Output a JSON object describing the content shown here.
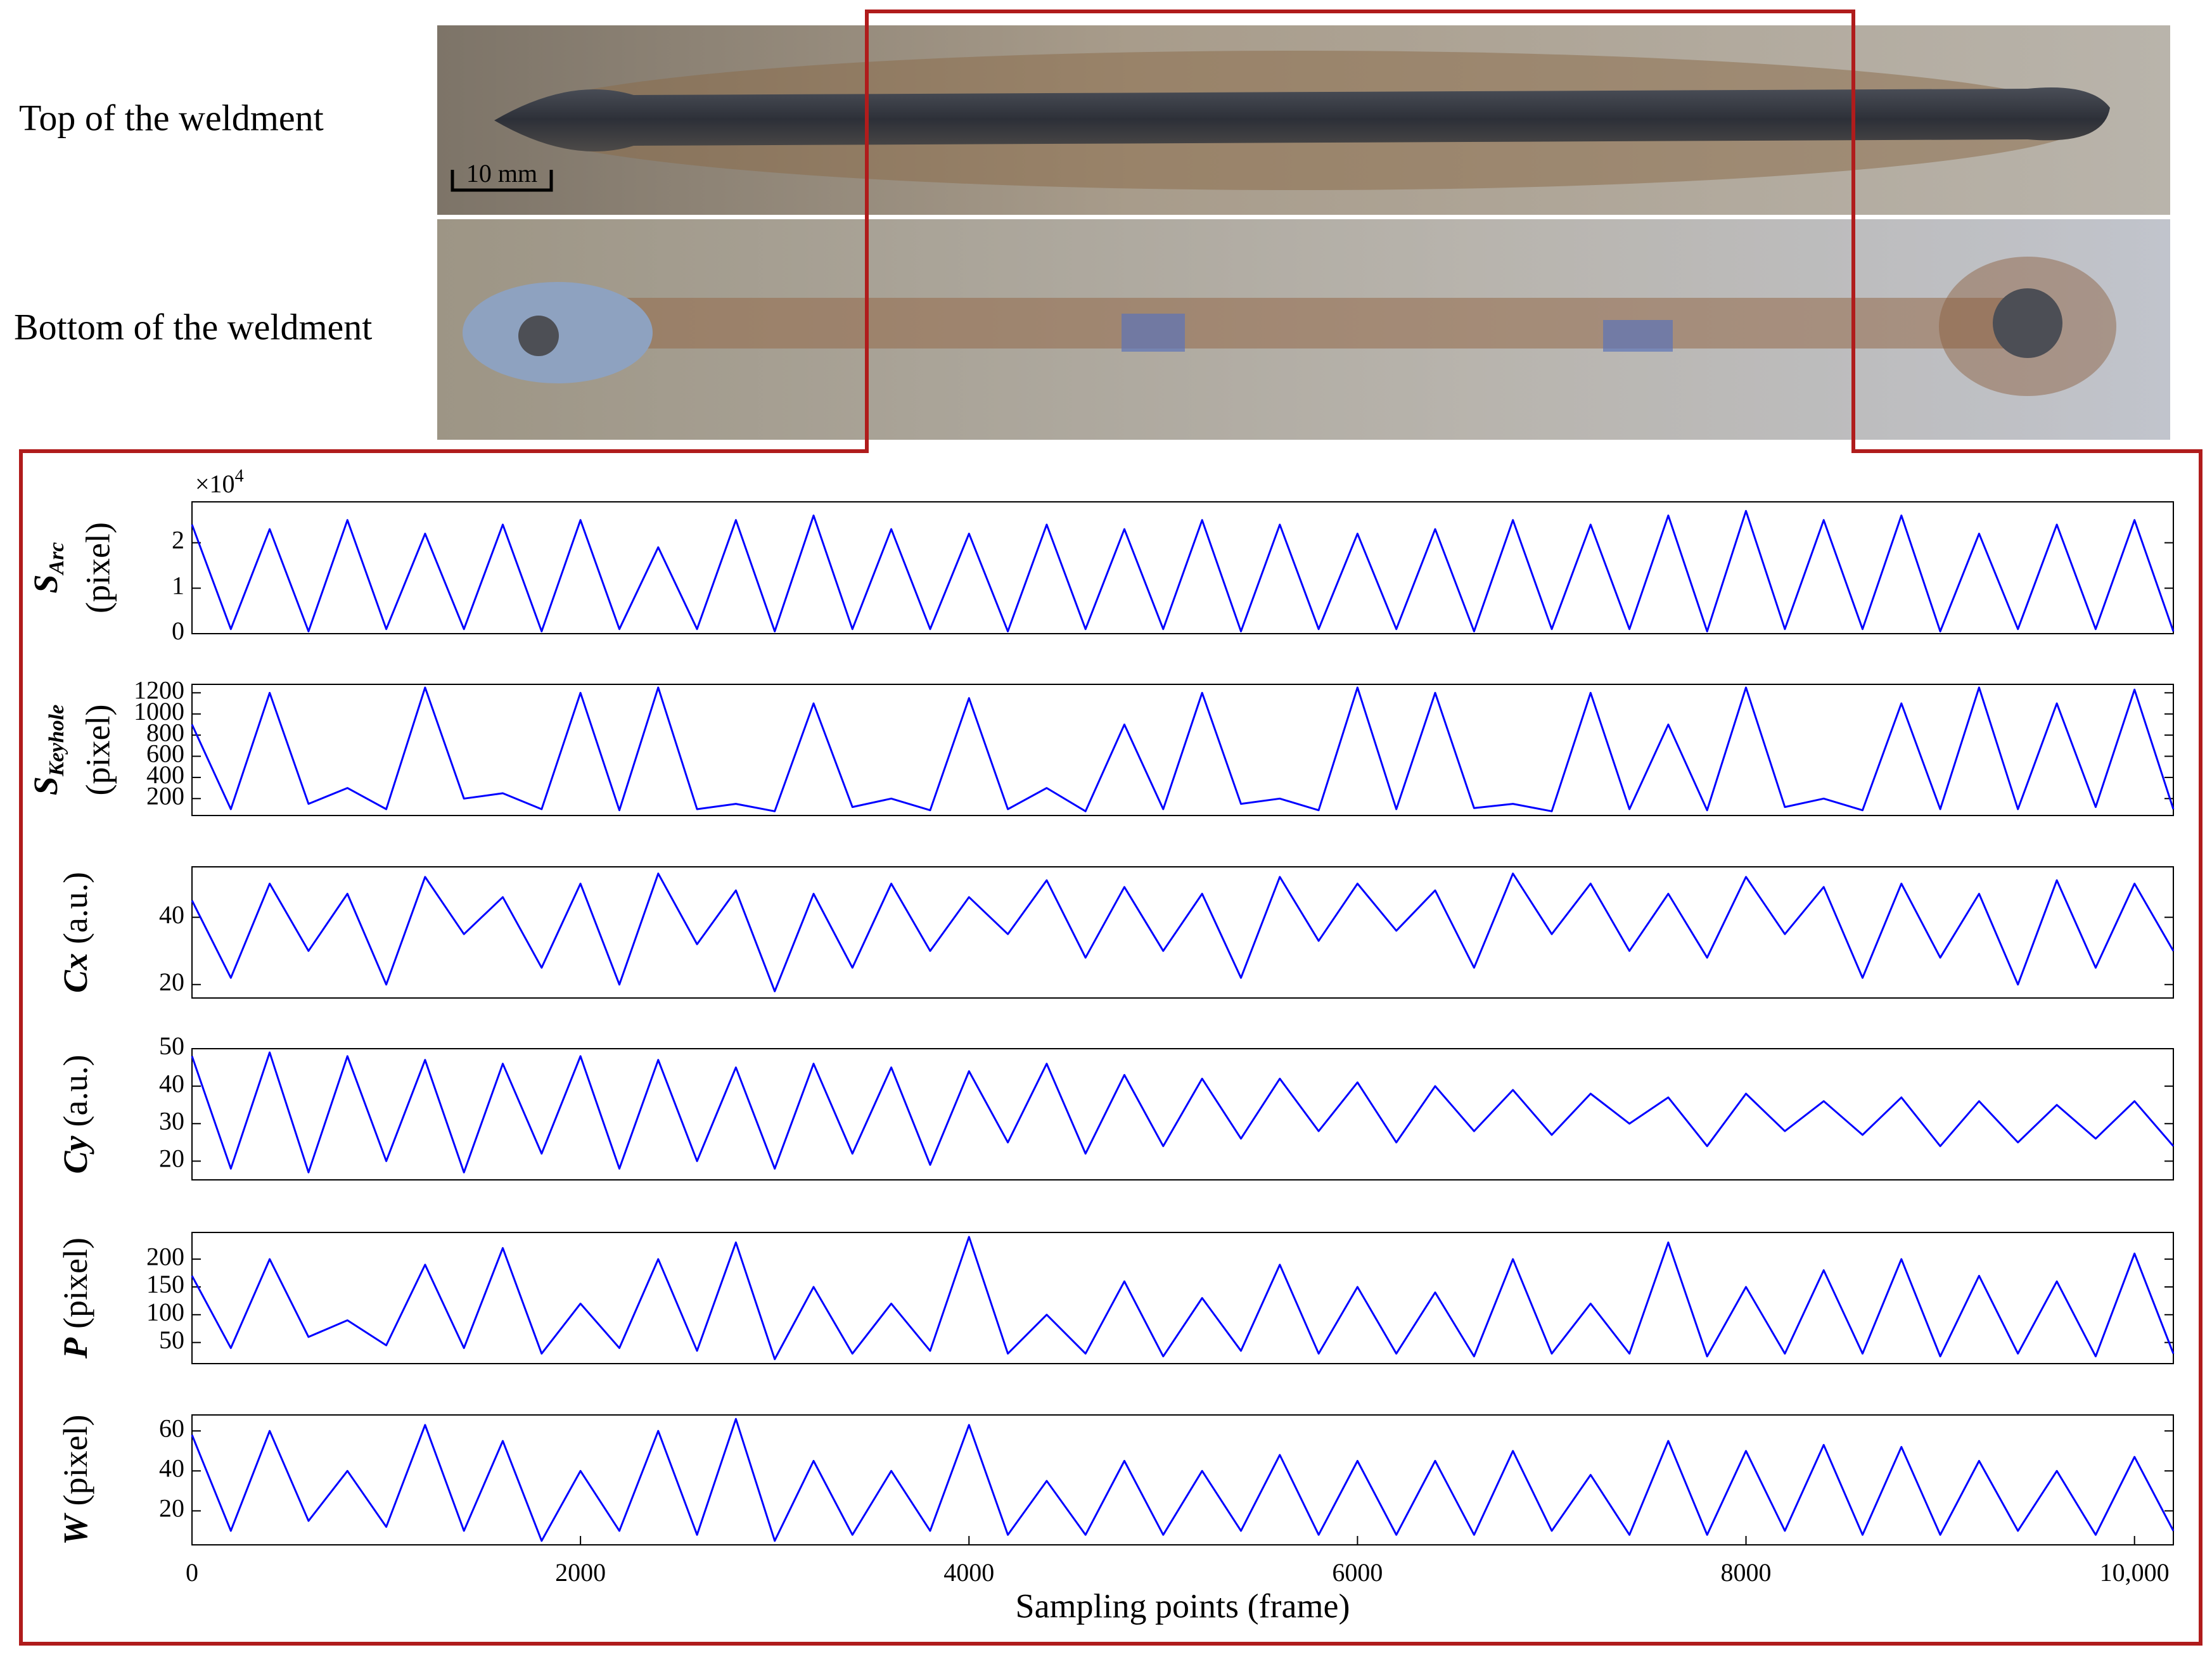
{
  "photo": {
    "top_label": "Top of the weldment",
    "bottom_label": "Bottom of the weldment",
    "scale_bar": "10 mm"
  },
  "chart_data": [
    {
      "type": "line",
      "ylabel_symbol": "S",
      "ylabel_sub": "Arc",
      "ylabel_unit": "(pixel)",
      "ylabel_scale": "×10",
      "ylabel_scale_exp": "4",
      "color": "#0000ff",
      "xlim": [
        0,
        10200
      ],
      "ylim": [
        0,
        2.9
      ],
      "yticks": [
        0,
        1,
        2
      ],
      "x": [
        0,
        200,
        400,
        600,
        800,
        1000,
        1200,
        1400,
        1600,
        1800,
        2000,
        2200,
        2400,
        2600,
        2800,
        3000,
        3200,
        3400,
        3600,
        3800,
        4000,
        4200,
        4400,
        4600,
        4800,
        5000,
        5200,
        5400,
        5600,
        5800,
        6000,
        6200,
        6400,
        6600,
        6800,
        7000,
        7200,
        7400,
        7600,
        7800,
        8000,
        8200,
        8400,
        8600,
        8800,
        9000,
        9200,
        9400,
        9600,
        9800,
        10000,
        10200
      ],
      "values": [
        2.4,
        0.1,
        2.3,
        0.05,
        2.5,
        0.1,
        2.2,
        0.1,
        2.4,
        0.05,
        2.5,
        0.1,
        1.9,
        0.1,
        2.5,
        0.05,
        2.6,
        0.1,
        2.3,
        0.1,
        2.2,
        0.05,
        2.4,
        0.1,
        2.3,
        0.1,
        2.5,
        0.05,
        2.4,
        0.1,
        2.2,
        0.1,
        2.3,
        0.05,
        2.5,
        0.1,
        2.4,
        0.1,
        2.6,
        0.05,
        2.7,
        0.1,
        2.5,
        0.1,
        2.6,
        0.05,
        2.2,
        0.1,
        2.4,
        0.1,
        2.5,
        0.05
      ]
    },
    {
      "type": "line",
      "ylabel_symbol": "S",
      "ylabel_sub": "Keyhole",
      "ylabel_unit": "(pixel)",
      "color": "#0000ff",
      "xlim": [
        0,
        10200
      ],
      "ylim": [
        40,
        1280
      ],
      "yticks": [
        200,
        400,
        600,
        800,
        1000,
        1200
      ],
      "x": [
        0,
        200,
        400,
        600,
        800,
        1000,
        1200,
        1400,
        1600,
        1800,
        2000,
        2200,
        2400,
        2600,
        2800,
        3000,
        3200,
        3400,
        3600,
        3800,
        4000,
        4200,
        4400,
        4600,
        4800,
        5000,
        5200,
        5400,
        5600,
        5800,
        6000,
        6200,
        6400,
        6600,
        6800,
        7000,
        7200,
        7400,
        7600,
        7800,
        8000,
        8200,
        8400,
        8600,
        8800,
        9000,
        9200,
        9400,
        9600,
        9800,
        10000,
        10200
      ],
      "values": [
        900,
        100,
        1200,
        150,
        300,
        100,
        1250,
        200,
        250,
        100,
        1200,
        90,
        1250,
        100,
        150,
        80,
        1100,
        120,
        200,
        90,
        1150,
        100,
        300,
        80,
        900,
        100,
        1200,
        150,
        200,
        90,
        1250,
        100,
        1200,
        110,
        150,
        80,
        1200,
        100,
        900,
        90,
        1250,
        120,
        200,
        90,
        1100,
        100,
        1250,
        100,
        1100,
        120,
        1230,
        100
      ]
    },
    {
      "type": "line",
      "ylabel_symbol": "Cx",
      "ylabel_unit": "(a.u.)",
      "color": "#0000ff",
      "xlim": [
        0,
        10200
      ],
      "ylim": [
        16,
        55
      ],
      "yticks": [
        20,
        40
      ],
      "x": [
        0,
        200,
        400,
        600,
        800,
        1000,
        1200,
        1400,
        1600,
        1800,
        2000,
        2200,
        2400,
        2600,
        2800,
        3000,
        3200,
        3400,
        3600,
        3800,
        4000,
        4200,
        4400,
        4600,
        4800,
        5000,
        5200,
        5400,
        5600,
        5800,
        6000,
        6200,
        6400,
        6600,
        6800,
        7000,
        7200,
        7400,
        7600,
        7800,
        8000,
        8200,
        8400,
        8600,
        8800,
        9000,
        9200,
        9400,
        9600,
        9800,
        10000,
        10200
      ],
      "values": [
        45,
        22,
        50,
        30,
        47,
        20,
        52,
        35,
        46,
        25,
        50,
        20,
        53,
        32,
        48,
        18,
        47,
        25,
        50,
        30,
        46,
        35,
        51,
        28,
        49,
        30,
        47,
        22,
        52,
        33,
        50,
        36,
        48,
        25,
        53,
        35,
        50,
        30,
        47,
        28,
        52,
        35,
        49,
        22,
        50,
        28,
        47,
        20,
        51,
        25,
        50,
        30
      ]
    },
    {
      "type": "line",
      "ylabel_symbol": "Cy",
      "ylabel_unit": "(a.u.)",
      "color": "#0000ff",
      "xlim": [
        0,
        10200
      ],
      "ylim": [
        15,
        50
      ],
      "yticks": [
        20,
        30,
        40,
        50
      ],
      "x": [
        0,
        200,
        400,
        600,
        800,
        1000,
        1200,
        1400,
        1600,
        1800,
        2000,
        2200,
        2400,
        2600,
        2800,
        3000,
        3200,
        3400,
        3600,
        3800,
        4000,
        4200,
        4400,
        4600,
        4800,
        5000,
        5200,
        5400,
        5600,
        5800,
        6000,
        6200,
        6400,
        6600,
        6800,
        7000,
        7200,
        7400,
        7600,
        7800,
        8000,
        8200,
        8400,
        8600,
        8800,
        9000,
        9200,
        9400,
        9600,
        9800,
        10000,
        10200
      ],
      "values": [
        48,
        18,
        49,
        17,
        48,
        20,
        47,
        17,
        46,
        22,
        48,
        18,
        47,
        20,
        45,
        18,
        46,
        22,
        45,
        19,
        44,
        25,
        46,
        22,
        43,
        24,
        42,
        26,
        42,
        28,
        41,
        25,
        40,
        28,
        39,
        27,
        38,
        30,
        37,
        24,
        38,
        28,
        36,
        27,
        37,
        24,
        36,
        25,
        35,
        26,
        36,
        24
      ]
    },
    {
      "type": "line",
      "ylabel_symbol": "P",
      "ylabel_unit": "(pixel)",
      "color": "#0000ff",
      "xlim": [
        0,
        10200
      ],
      "ylim": [
        12,
        248
      ],
      "yticks": [
        50,
        100,
        150,
        200
      ],
      "x": [
        0,
        200,
        400,
        600,
        800,
        1000,
        1200,
        1400,
        1600,
        1800,
        2000,
        2200,
        2400,
        2600,
        2800,
        3000,
        3200,
        3400,
        3600,
        3800,
        4000,
        4200,
        4400,
        4600,
        4800,
        5000,
        5200,
        5400,
        5600,
        5800,
        6000,
        6200,
        6400,
        6600,
        6800,
        7000,
        7200,
        7400,
        7600,
        7800,
        8000,
        8200,
        8400,
        8600,
        8800,
        9000,
        9200,
        9400,
        9600,
        9800,
        10000,
        10200
      ],
      "values": [
        170,
        40,
        200,
        60,
        90,
        45,
        190,
        40,
        220,
        30,
        120,
        40,
        200,
        35,
        230,
        20,
        150,
        30,
        120,
        35,
        240,
        30,
        100,
        30,
        160,
        25,
        130,
        35,
        190,
        30,
        150,
        30,
        140,
        25,
        200,
        30,
        120,
        30,
        230,
        25,
        150,
        30,
        180,
        30,
        200,
        25,
        170,
        30,
        160,
        25,
        210,
        30
      ]
    },
    {
      "type": "line",
      "ylabel_symbol": "W",
      "ylabel_unit": "(pixel)",
      "color": "#0000ff",
      "xlim": [
        0,
        10200
      ],
      "ylim": [
        3,
        68
      ],
      "yticks": [
        20,
        40,
        60
      ],
      "xticks": [
        0,
        2000,
        4000,
        6000,
        8000,
        {
          "value": 10000,
          "label": "10,000"
        }
      ],
      "xlabel": "Sampling points (frame)",
      "x": [
        0,
        200,
        400,
        600,
        800,
        1000,
        1200,
        1400,
        1600,
        1800,
        2000,
        2200,
        2400,
        2600,
        2800,
        3000,
        3200,
        3400,
        3600,
        3800,
        4000,
        4200,
        4400,
        4600,
        4800,
        5000,
        5200,
        5400,
        5600,
        5800,
        6000,
        6200,
        6400,
        6600,
        6800,
        7000,
        7200,
        7400,
        7600,
        7800,
        8000,
        8200,
        8400,
        8600,
        8800,
        9000,
        9200,
        9400,
        9600,
        9800,
        10000,
        10200
      ],
      "values": [
        58,
        10,
        60,
        15,
        40,
        12,
        63,
        10,
        55,
        5,
        40,
        10,
        60,
        8,
        66,
        5,
        45,
        8,
        40,
        10,
        63,
        8,
        35,
        8,
        45,
        8,
        40,
        10,
        48,
        8,
        45,
        8,
        45,
        8,
        50,
        10,
        38,
        8,
        55,
        8,
        50,
        10,
        53,
        8,
        52,
        8,
        45,
        10,
        40,
        8,
        47,
        10
      ]
    }
  ]
}
